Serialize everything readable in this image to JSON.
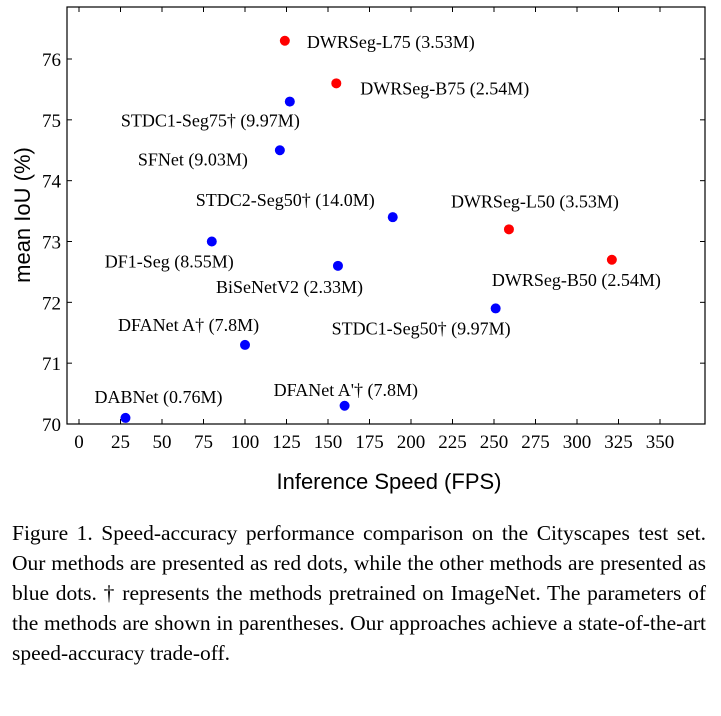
{
  "chart_data": {
    "type": "scatter",
    "title": "",
    "xlabel": "Inference Speed (FPS)",
    "ylabel": "mean IoU (%)",
    "xlim": [
      0,
      380
    ],
    "ylim": [
      70,
      76.6
    ],
    "xticks": [
      0,
      25,
      50,
      75,
      100,
      125,
      150,
      175,
      200,
      225,
      250,
      275,
      300,
      325,
      350
    ],
    "yticks": [
      70,
      71,
      72,
      73,
      74,
      75,
      76
    ],
    "grid": false,
    "colors": {
      "ours": "#ff0000",
      "others": "#0000ff"
    },
    "points": [
      {
        "label": "DWRSeg-L75 (3.53M)",
        "x": 124,
        "y": 76.3,
        "group": "ours"
      },
      {
        "label": "DWRSeg-B75 (2.54M)",
        "x": 155,
        "y": 75.6,
        "group": "ours"
      },
      {
        "label": "DWRSeg-L50 (3.53M)",
        "x": 259,
        "y": 73.2,
        "group": "ours"
      },
      {
        "label": "DWRSeg-B50 (2.54M)",
        "x": 321,
        "y": 72.7,
        "group": "ours"
      },
      {
        "label": "STDC1-Seg75† (9.97M)",
        "x": 127,
        "y": 75.3,
        "group": "others"
      },
      {
        "label": "SFNet (9.03M)",
        "x": 121,
        "y": 74.5,
        "group": "others"
      },
      {
        "label": "STDC2-Seg50† (14.0M)",
        "x": 189,
        "y": 73.4,
        "group": "others"
      },
      {
        "label": "DF1-Seg (8.55M)",
        "x": 80,
        "y": 73.0,
        "group": "others"
      },
      {
        "label": "BiSeNetV2 (2.33M)",
        "x": 156,
        "y": 72.6,
        "group": "others"
      },
      {
        "label": "STDC1-Seg50† (9.97M)",
        "x": 251,
        "y": 71.9,
        "group": "others"
      },
      {
        "label": "DFANet A† (7.8M)",
        "x": 100,
        "y": 71.3,
        "group": "others"
      },
      {
        "label": "DABNet (0.76M)",
        "x": 28,
        "y": 70.1,
        "group": "others"
      },
      {
        "label": "DFANet A'† (7.8M)",
        "x": 160,
        "y": 70.3,
        "group": "others"
      }
    ]
  },
  "caption": "Figure 1.   Speed-accuracy performance comparison on the Cityscapes test set. Our methods are presented as red dots, while the other methods are presented as blue dots. † represents the methods pretrained on ImageNet. The parameters of the methods are shown in parentheses. Our approaches achieve a state-of-the-art speed-accuracy trade-off."
}
